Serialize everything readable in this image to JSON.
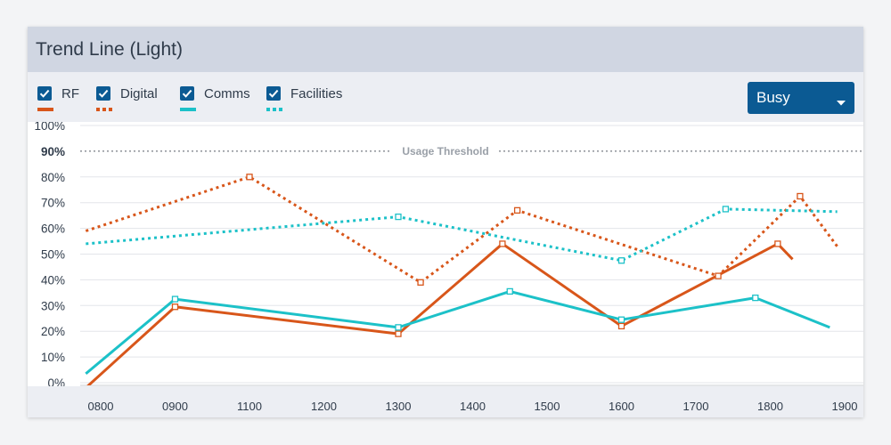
{
  "card": {
    "title": "Trend Line (Light)",
    "dropdown": {
      "value": "Busy"
    }
  },
  "legend": [
    {
      "label": "RF",
      "color": "#d8561a",
      "style": "solid",
      "checked": true,
      "icon": "checkbox-checked-icon"
    },
    {
      "label": "Digital",
      "color": "#d8561a",
      "style": "dotted",
      "checked": true,
      "icon": "checkbox-checked-icon"
    },
    {
      "label": "Comms",
      "color": "#1cc1c8",
      "style": "solid",
      "checked": true,
      "icon": "checkbox-checked-icon"
    },
    {
      "label": "Facilities",
      "color": "#1cc1c8",
      "style": "dotted",
      "checked": true,
      "icon": "checkbox-checked-icon"
    }
  ],
  "chart_data": {
    "type": "line",
    "xlabel": "",
    "ylabel": "",
    "x_ticks": [
      "0800",
      "0900",
      "1100",
      "1200",
      "1300",
      "1400",
      "1500",
      "1600",
      "1700",
      "1800",
      "1900"
    ],
    "y_ticks": [
      "0%",
      "10%",
      "20%",
      "30%",
      "40%",
      "50%",
      "60%",
      "70%",
      "80%",
      "90%",
      "100%"
    ],
    "ylim": [
      0,
      100
    ],
    "grid": true,
    "threshold": {
      "label": "Usage Threshold",
      "value": 90
    },
    "series": [
      {
        "name": "RF",
        "color": "#d8561a",
        "style": "solid",
        "points": [
          [
            -0.2,
            -2
          ],
          [
            1.0,
            29.5
          ],
          [
            4.0,
            19
          ],
          [
            5.4,
            54
          ],
          [
            7.0,
            22
          ],
          [
            9.1,
            54
          ],
          [
            9.3,
            48
          ]
        ],
        "markers": [
          1,
          2,
          3,
          4,
          5
        ]
      },
      {
        "name": "Digital",
        "color": "#d8561a",
        "style": "dotted",
        "points": [
          [
            -0.2,
            59
          ],
          [
            2.0,
            80
          ],
          [
            4.3,
            39
          ],
          [
            5.6,
            67
          ],
          [
            8.3,
            41.5
          ],
          [
            9.4,
            72.5
          ],
          [
            9.9,
            53
          ]
        ],
        "markers": [
          1,
          2,
          3,
          4,
          5
        ]
      },
      {
        "name": "Comms",
        "color": "#1cc1c8",
        "style": "solid",
        "points": [
          [
            -0.2,
            3.5
          ],
          [
            1.0,
            32.5
          ],
          [
            4.0,
            21.5
          ],
          [
            5.5,
            35.5
          ],
          [
            7.0,
            24.5
          ],
          [
            8.8,
            33
          ],
          [
            9.8,
            21.5
          ]
        ],
        "markers": [
          1,
          2,
          3,
          4,
          5
        ]
      },
      {
        "name": "Facilities",
        "color": "#1cc1c8",
        "style": "dotted",
        "points": [
          [
            -0.2,
            54
          ],
          [
            4.0,
            64.5
          ],
          [
            7.0,
            47.5
          ],
          [
            8.4,
            67.5
          ],
          [
            9.9,
            66.5
          ]
        ],
        "markers": [
          1,
          2,
          3
        ]
      }
    ]
  }
}
